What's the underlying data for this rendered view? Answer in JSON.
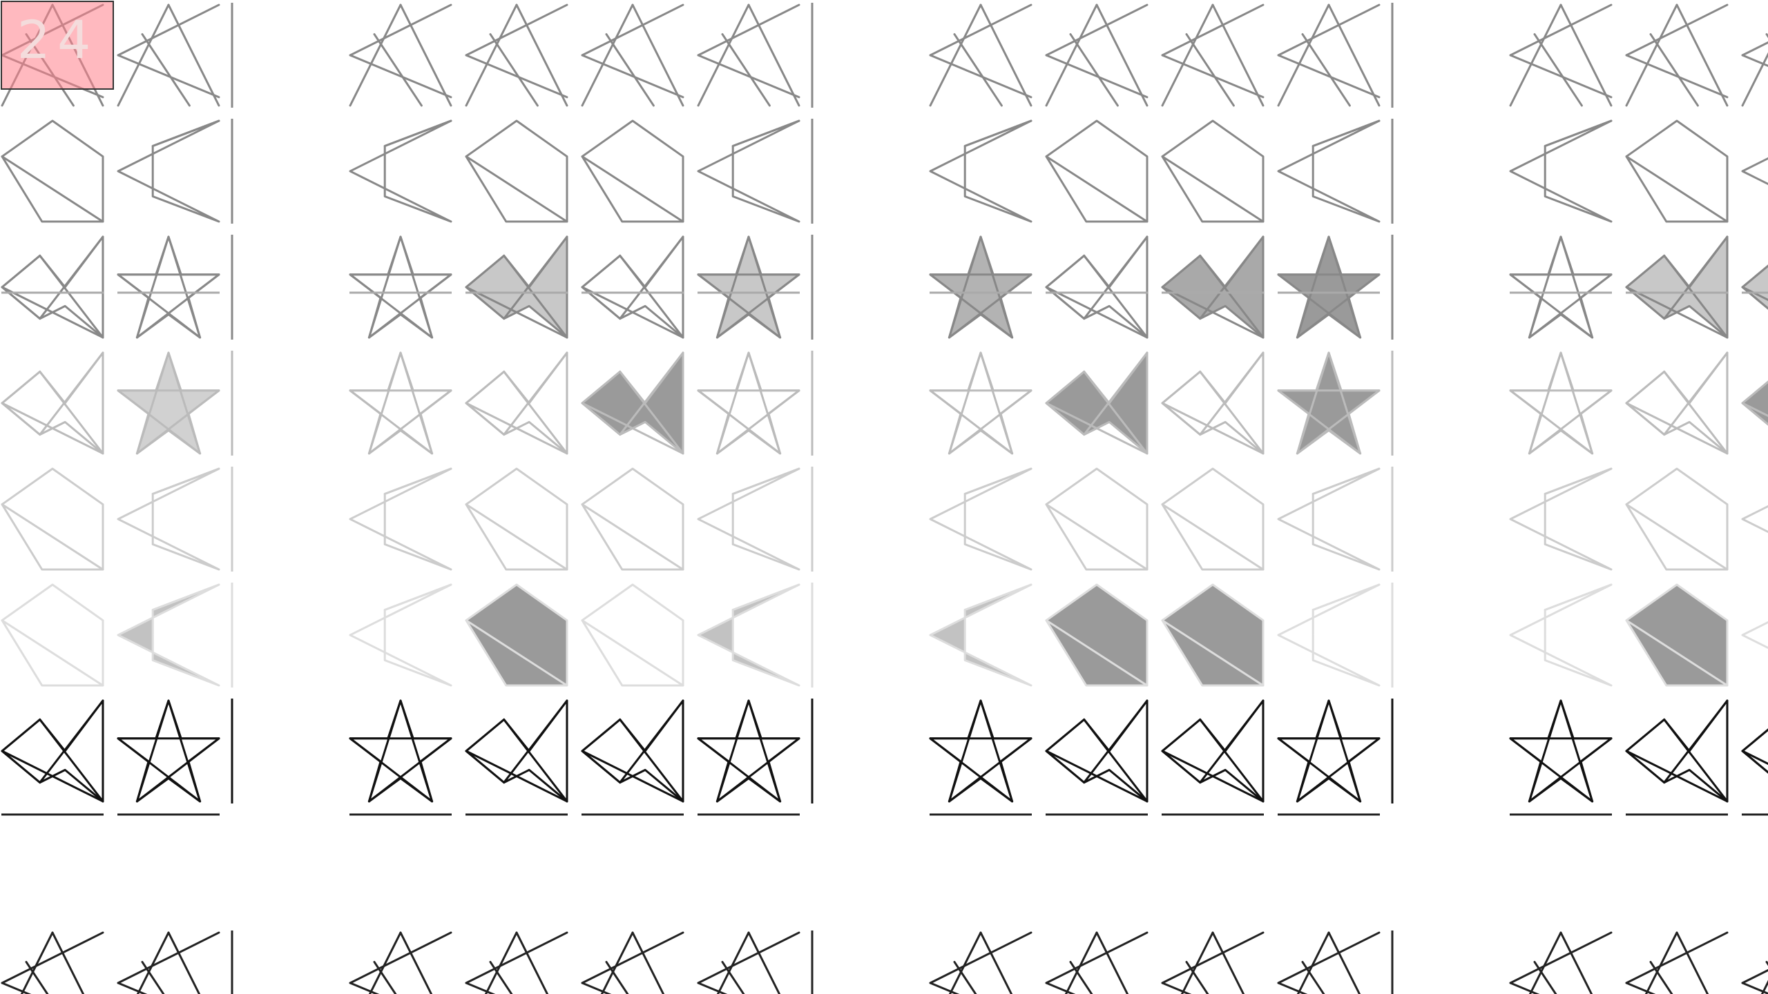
{
  "game": {
    "counter": "24",
    "colors": {
      "background": "#ffffff",
      "counter_fill": "#ff808a",
      "counter_text": "#f4dcdc",
      "fill": "#9a9a9a"
    },
    "shapes": [
      "pentagon",
      "arrow",
      "star",
      "bowtie",
      "zigzag",
      "divider"
    ],
    "rows": [
      {
        "shape": "zigzag",
        "stroke": "#888888",
        "fills": [
          0,
          0,
          0,
          0,
          0,
          0,
          0,
          0,
          0,
          0,
          0,
          0,
          0
        ]
      },
      {
        "shape": "pent-arrow",
        "stroke": "#888888",
        "fills": [
          0,
          0,
          0,
          0,
          0,
          0,
          0,
          0,
          0,
          0,
          0,
          0,
          0
        ]
      },
      {
        "shape": "star-bow",
        "stroke": "#888888",
        "fills": [
          0,
          0,
          0,
          0.55,
          0,
          0.55,
          0.75,
          0,
          0.85,
          1,
          0,
          0.55,
          0.55
        ]
      },
      {
        "shape": "hline",
        "stroke": "#aaaaaa"
      },
      {
        "shape": "star-bow",
        "stroke": "#bbbbbb",
        "fills": [
          0,
          0.45,
          0,
          0,
          1,
          0,
          0,
          1,
          0,
          1,
          0,
          0,
          1
        ]
      },
      {
        "shape": "pent-arrow",
        "stroke": "#cccccc",
        "fills": [
          0,
          0,
          0,
          0,
          0,
          0,
          0,
          0,
          0,
          0,
          0,
          0,
          0
        ]
      },
      {
        "shape": "pent-arrow",
        "stroke": "#dddddd",
        "fills": [
          0,
          0.6,
          0,
          1,
          0,
          0.6,
          0.6,
          1,
          1,
          0,
          0,
          1,
          0
        ]
      },
      {
        "shape": "star-bow",
        "stroke": "#111111",
        "fills": [
          0,
          0,
          0,
          0,
          0,
          0,
          0,
          0,
          0,
          0,
          0,
          0,
          0
        ]
      },
      {
        "shape": "hline",
        "stroke": "#222222"
      },
      {
        "shape": "zigzag",
        "stroke": "#222222",
        "fills": [
          0,
          0,
          0,
          0,
          0,
          0,
          0,
          0,
          0,
          0,
          0,
          0,
          0
        ]
      }
    ]
  }
}
